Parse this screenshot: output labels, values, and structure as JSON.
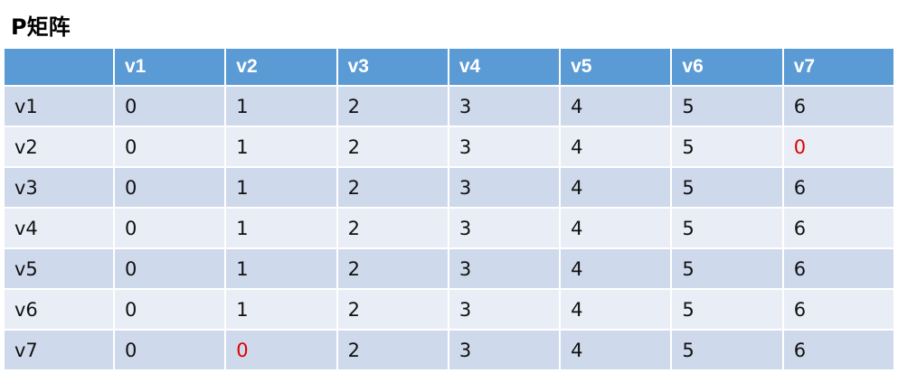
{
  "header": {
    "title": "P矩阵"
  },
  "table": {
    "columns": [
      "v1",
      "v2",
      "v3",
      "v4",
      "v5",
      "v6",
      "v7"
    ],
    "rows": [
      [
        "v1",
        "0",
        "1",
        "2",
        "3",
        "4",
        "5",
        "6"
      ],
      [
        "v2",
        "0",
        "1",
        "2",
        "3",
        "4",
        "5",
        {
          "text": "0",
          "color": "#e00000"
        }
      ],
      [
        "v3",
        "0",
        "1",
        "2",
        "3",
        "4",
        "5",
        "6"
      ],
      [
        "v4",
        "0",
        "1",
        "2",
        "3",
        "4",
        "5",
        "6"
      ],
      [
        "v5",
        "0",
        "1",
        "2",
        "3",
        "4",
        "5",
        "6"
      ],
      [
        "v6",
        "0",
        "1",
        "2",
        "3",
        "4",
        "5",
        "6"
      ],
      [
        "v7",
        "0",
        {
          "text": "0",
          "color": "#e00000"
        },
        "2",
        "3",
        "4",
        "5",
        "6"
      ]
    ]
  }
}
